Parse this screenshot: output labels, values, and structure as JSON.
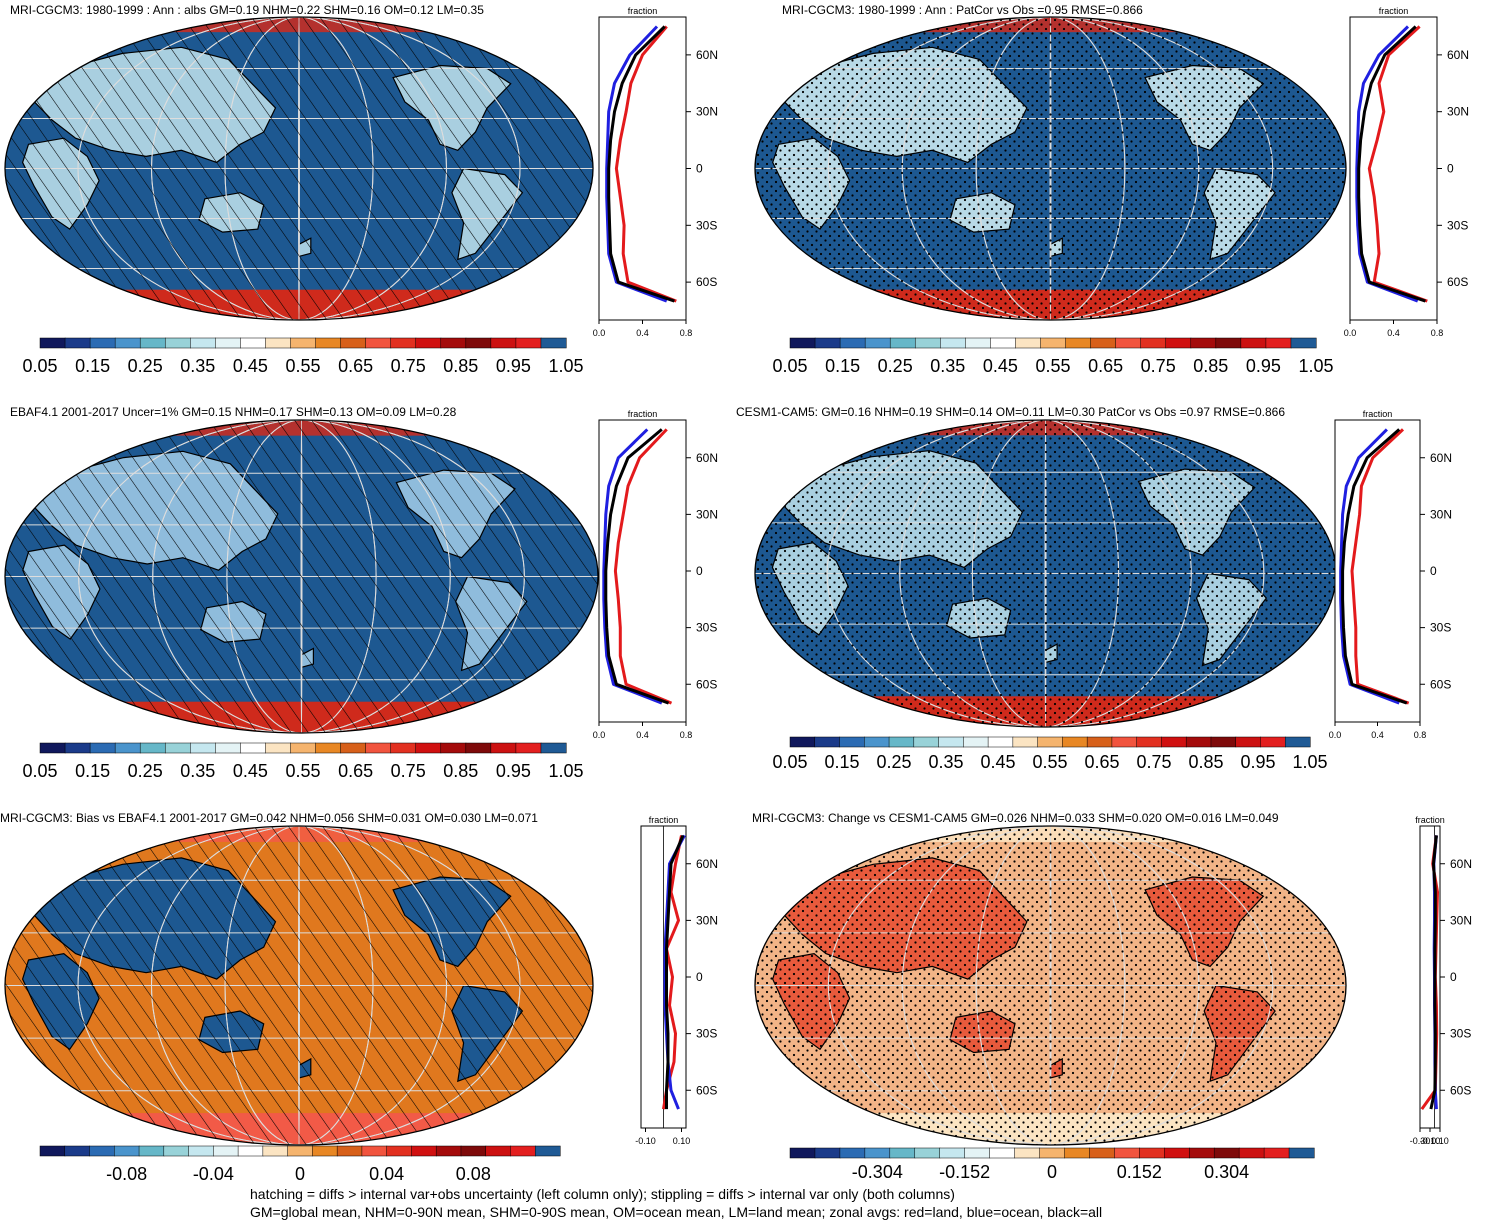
{
  "palette_abs": [
    "#10185c",
    "#1b3b8a",
    "#2b6bb3",
    "#4a94cc",
    "#66b7c8",
    "#98d2d8",
    "#c5e7ef",
    "#e4f3f5",
    "#ffffff",
    "#fbe4c2",
    "#f5b46e",
    "#e88724",
    "#d7601a",
    "#f1543e",
    "#e23020",
    "#d01010",
    "#a40b0b",
    "#7e0a0a",
    "#cc1111",
    "#e31f1f",
    "#1f5a95"
  ],
  "palette_diff": [
    "#10185c",
    "#1b3b8a",
    "#2b6bb3",
    "#4a94cc",
    "#66b7c8",
    "#98d2d8",
    "#c5e7ef",
    "#e4f3f5",
    "#ffffff",
    "#fbe4c2",
    "#f5b46e",
    "#e88724",
    "#d7601a",
    "#f1543e",
    "#e23020",
    "#d01010",
    "#a40b0b",
    "#7e0a0a",
    "#cc1111",
    "#e31f1f",
    "#1f5a95"
  ],
  "panels": [
    {
      "title": "MRI-CGCM3: 1980-1999 : Ann : albs GM=0.19 NHM=0.22 SHM=0.16 OM=0.12 LM=0.35",
      "hatch": "hatch",
      "ocean": "#1d5891",
      "land": "#a9cfe0",
      "polar": "#cf2a1c",
      "colorbar": [
        "0.05",
        "0.15",
        "0.25",
        "0.35",
        "0.45",
        "0.55",
        "0.65",
        "0.75",
        "0.85",
        "0.95",
        "1.05"
      ],
      "zonal": {
        "label": "fraction",
        "xticks": [
          "0.0",
          "0.4",
          "0.8"
        ],
        "yticks": [
          "60N",
          "30N",
          "0",
          "30S",
          "60S"
        ]
      }
    },
    {
      "title": "MRI-CGCM3: 1980-1999 : Ann : PatCor vs Obs =0.95 RMSE=0.866",
      "hatch": "stipple",
      "ocean": "#1d5891",
      "land": "#b8d9e6",
      "polar": "#cf2a1c",
      "colorbar": [
        "0.05",
        "0.15",
        "0.25",
        "0.35",
        "0.45",
        "0.55",
        "0.65",
        "0.75",
        "0.85",
        "0.95",
        "1.05"
      ],
      "zonal": {
        "label": "fraction",
        "xticks": [
          "0.0",
          "0.4",
          "0.8"
        ],
        "yticks": [
          "60N",
          "30N",
          "0",
          "30S",
          "60S"
        ]
      }
    },
    {
      "title": "EBAF4.1 2001-2017 Uncer=1% GM=0.15 NHM=0.17 SHM=0.13 OM=0.09 LM=0.28",
      "hatch": "hatch",
      "ocean": "#1d5891",
      "land": "#8fbcdc",
      "polar": "#cf2a1c",
      "colorbar": [
        "0.05",
        "0.15",
        "0.25",
        "0.35",
        "0.45",
        "0.55",
        "0.65",
        "0.75",
        "0.85",
        "0.95",
        "1.05"
      ],
      "zonal": {
        "label": "fraction",
        "xticks": [
          "0.0",
          "0.4",
          "0.8"
        ],
        "yticks": [
          "60N",
          "30N",
          "0",
          "30S",
          "60S"
        ]
      }
    },
    {
      "title": "CESM1-CAM5: GM=0.16 NHM=0.19 SHM=0.14 OM=0.11 LM=0.30 PatCor vs Obs =0.97 RMSE=0.866",
      "hatch": "stipple",
      "ocean": "#1d5891",
      "land": "#a9cfe0",
      "polar": "#cf2a1c",
      "colorbar": [
        "0.05",
        "0.15",
        "0.25",
        "0.35",
        "0.45",
        "0.55",
        "0.65",
        "0.75",
        "0.85",
        "0.95",
        "1.05"
      ],
      "zonal": {
        "label": "fraction",
        "xticks": [
          "0.0",
          "0.4",
          "0.8"
        ],
        "yticks": [
          "60N",
          "30N",
          "0",
          "30S",
          "60S"
        ]
      }
    },
    {
      "title": "MRI-CGCM3: Bias vs EBAF4.1 2001-2017 GM=0.042 NHM=0.056 SHM=0.031 OM=0.030 LM=0.071",
      "hatch": "hatch",
      "ocean": "#e0781e",
      "land": "#1d5891",
      "polar": "#f25a47",
      "colorbar": [
        "-0.08",
        "-0.04",
        "0",
        "0.04",
        "0.08"
      ],
      "zonal": {
        "label": "fraction",
        "xticks": [
          "-0.10",
          "0.10"
        ],
        "yticks": [
          "60N",
          "30N",
          "0",
          "30S",
          "60S"
        ]
      }
    },
    {
      "title": "MRI-CGCM3: Change vs CESM1-CAM5 GM=0.026 NHM=0.033 SHM=0.020 OM=0.016 LM=0.049",
      "hatch": "stipple",
      "ocean": "#f2b487",
      "land": "#e85a3c",
      "polar": "#fbe4c2",
      "colorbar": [
        "-0.304",
        "-0.152",
        "0",
        "0.152",
        "0.304"
      ],
      "zonal": {
        "label": "fraction",
        "xticks": [
          "-0.30",
          "-0.10",
          "0.10"
        ],
        "yticks": [
          "60N",
          "30N",
          "0",
          "30S",
          "60S"
        ]
      }
    }
  ],
  "footer": {
    "line1": "hatching = diffs > internal var+obs uncertainty (left column only); stippling = diffs > internal var only (both columns)",
    "line2": "GM=global mean, NHM=0-90N mean, SHM=0-90S mean, OM=ocean mean, LM=land mean; zonal avgs: red=land, blue=ocean, black=all"
  },
  "chart_data": [
    {
      "type": "heatmap",
      "title": "MRI-CGCM3: 1980-1999 : Ann : albs GM=0.19 NHM=0.22 SHM=0.16 OM=0.12 LM=0.35",
      "colorbar_ticks": [
        0.05,
        0.15,
        0.25,
        0.35,
        0.45,
        0.55,
        0.65,
        0.75,
        0.85,
        0.95,
        1.05
      ],
      "zonal_mean": {
        "xlabel": "fraction",
        "xlim": [
          0,
          0.9
        ],
        "lat": [
          75,
          60,
          45,
          30,
          15,
          0,
          -15,
          -30,
          -45,
          -60,
          -70
        ],
        "series": [
          {
            "name": "land",
            "color": "#e31a1c",
            "values": [
              0.7,
              0.45,
              0.33,
              0.28,
              0.22,
              0.18,
              0.22,
              0.26,
              0.25,
              0.3,
              0.8
            ]
          },
          {
            "name": "ocean",
            "color": "#1f1fe0",
            "values": [
              0.6,
              0.32,
              0.16,
              0.1,
              0.09,
              0.08,
              0.08,
              0.09,
              0.1,
              0.18,
              0.7
            ]
          },
          {
            "name": "all",
            "color": "#000000",
            "values": [
              0.68,
              0.38,
              0.24,
              0.16,
              0.12,
              0.1,
              0.1,
              0.11,
              0.12,
              0.2,
              0.78
            ]
          }
        ]
      }
    },
    {
      "type": "heatmap",
      "title": "MRI-CGCM3: 1980-1999 : Ann : PatCor vs Obs =0.95 RMSE=0.866",
      "colorbar_ticks": [
        0.05,
        0.15,
        0.25,
        0.35,
        0.45,
        0.55,
        0.65,
        0.75,
        0.85,
        0.95,
        1.05
      ],
      "zonal_mean": {
        "xlabel": "fraction",
        "xlim": [
          0,
          0.9
        ],
        "lat": [
          75,
          60,
          45,
          30,
          15,
          0,
          -15,
          -30,
          -45,
          -60,
          -70
        ],
        "series": [
          {
            "name": "land",
            "color": "#e31a1c",
            "values": [
              0.72,
              0.4,
              0.3,
              0.35,
              0.28,
              0.2,
              0.25,
              0.28,
              0.3,
              0.25,
              0.8
            ]
          },
          {
            "name": "ocean",
            "color": "#1f1fe0",
            "values": [
              0.6,
              0.3,
              0.14,
              0.09,
              0.08,
              0.07,
              0.07,
              0.08,
              0.1,
              0.18,
              0.7
            ]
          },
          {
            "name": "all",
            "color": "#000000",
            "values": [
              0.68,
              0.36,
              0.22,
              0.15,
              0.11,
              0.09,
              0.09,
              0.1,
              0.12,
              0.2,
              0.78
            ]
          }
        ]
      }
    },
    {
      "type": "heatmap",
      "title": "EBAF4.1 2001-2017 Uncer=1% GM=0.15 NHM=0.17 SHM=0.13 OM=0.09 LM=0.28",
      "colorbar_ticks": [
        0.05,
        0.15,
        0.25,
        0.35,
        0.45,
        0.55,
        0.65,
        0.75,
        0.85,
        0.95,
        1.05
      ],
      "zonal_mean": {
        "xlabel": "fraction",
        "xlim": [
          0,
          0.9
        ],
        "lat": [
          75,
          60,
          45,
          30,
          15,
          0,
          -15,
          -30,
          -45,
          -60,
          -70
        ],
        "series": [
          {
            "name": "land",
            "color": "#e31a1c",
            "values": [
              0.7,
              0.42,
              0.3,
              0.25,
              0.2,
              0.17,
              0.2,
              0.22,
              0.22,
              0.28,
              0.75
            ]
          },
          {
            "name": "ocean",
            "color": "#1f1fe0",
            "values": [
              0.5,
              0.2,
              0.1,
              0.07,
              0.06,
              0.05,
              0.05,
              0.06,
              0.08,
              0.15,
              0.65
            ]
          },
          {
            "name": "all",
            "color": "#000000",
            "values": [
              0.65,
              0.3,
              0.18,
              0.12,
              0.09,
              0.07,
              0.07,
              0.08,
              0.1,
              0.18,
              0.72
            ]
          }
        ]
      }
    },
    {
      "type": "heatmap",
      "title": "CESM1-CAM5: GM=0.16 NHM=0.19 SHM=0.14 OM=0.11 LM=0.30 PatCor vs Obs =0.97 RMSE=0.866",
      "colorbar_ticks": [
        0.05,
        0.15,
        0.25,
        0.35,
        0.45,
        0.55,
        0.65,
        0.75,
        0.85,
        0.95,
        1.05
      ],
      "zonal_mean": {
        "xlabel": "fraction",
        "xlim": [
          0,
          0.9
        ],
        "lat": [
          75,
          60,
          45,
          30,
          15,
          0,
          -15,
          -30,
          -45,
          -60,
          -70
        ],
        "series": [
          {
            "name": "land",
            "color": "#e31a1c",
            "values": [
              0.72,
              0.4,
              0.28,
              0.26,
              0.22,
              0.18,
              0.2,
              0.22,
              0.22,
              0.24,
              0.78
            ]
          },
          {
            "name": "ocean",
            "color": "#1f1fe0",
            "values": [
              0.55,
              0.25,
              0.12,
              0.08,
              0.07,
              0.06,
              0.06,
              0.07,
              0.09,
              0.16,
              0.68
            ]
          },
          {
            "name": "all",
            "color": "#000000",
            "values": [
              0.68,
              0.34,
              0.2,
              0.14,
              0.1,
              0.08,
              0.08,
              0.09,
              0.11,
              0.18,
              0.76
            ]
          }
        ]
      }
    },
    {
      "type": "heatmap",
      "title": "MRI-CGCM3: Bias vs EBAF4.1 2001-2017 GM=0.042 NHM=0.056 SHM=0.031 OM=0.030 LM=0.071",
      "colorbar_ticks": [
        -0.08,
        -0.04,
        0,
        0.04,
        0.08
      ],
      "zonal_mean": {
        "xlabel": "fraction",
        "xlim": [
          -0.15,
          0.15
        ],
        "lat": [
          75,
          60,
          45,
          30,
          15,
          0,
          -15,
          -30,
          -45,
          -60,
          -70
        ],
        "series": [
          {
            "name": "land",
            "color": "#e31a1c",
            "values": [
              0.12,
              0.08,
              0.05,
              0.1,
              0.02,
              0.06,
              0.04,
              0.08,
              0.07,
              0.02,
              0.0
            ]
          },
          {
            "name": "ocean",
            "color": "#1f1fe0",
            "values": [
              0.14,
              0.04,
              0.03,
              0.02,
              0.01,
              0.01,
              0.01,
              0.02,
              0.03,
              0.05,
              0.1
            ]
          },
          {
            "name": "all",
            "color": "#000000",
            "values": [
              0.13,
              0.05,
              0.04,
              0.03,
              0.02,
              0.02,
              0.02,
              0.03,
              0.03,
              0.02,
              0.02
            ]
          }
        ]
      }
    },
    {
      "type": "heatmap",
      "title": "MRI-CGCM3: Change vs CESM1-CAM5 GM=0.026 NHM=0.033 SHM=0.020 OM=0.016 LM=0.049",
      "colorbar_ticks": [
        -0.304,
        -0.152,
        0,
        0.152,
        0.304
      ],
      "zonal_mean": {
        "xlabel": "fraction",
        "xlim": [
          -0.4,
          0.15
        ],
        "lat": [
          75,
          60,
          45,
          30,
          15,
          0,
          -15,
          -30,
          -45,
          -60,
          -70
        ],
        "series": [
          {
            "name": "land",
            "color": "#e31a1c",
            "values": [
              0.05,
              -0.05,
              0.08,
              0.06,
              0.04,
              0.02,
              0.05,
              0.06,
              0.04,
              0.02,
              -0.35
            ]
          },
          {
            "name": "ocean",
            "color": "#1f1fe0",
            "values": [
              0.05,
              -0.02,
              0.0,
              0.0,
              -0.01,
              0.0,
              0.0,
              0.01,
              0.01,
              0.02,
              0.05
            ]
          },
          {
            "name": "all",
            "color": "#000000",
            "values": [
              0.05,
              -0.03,
              0.02,
              0.02,
              0.01,
              0.01,
              0.01,
              0.02,
              0.02,
              0.01,
              -0.1
            ]
          }
        ]
      }
    }
  ]
}
